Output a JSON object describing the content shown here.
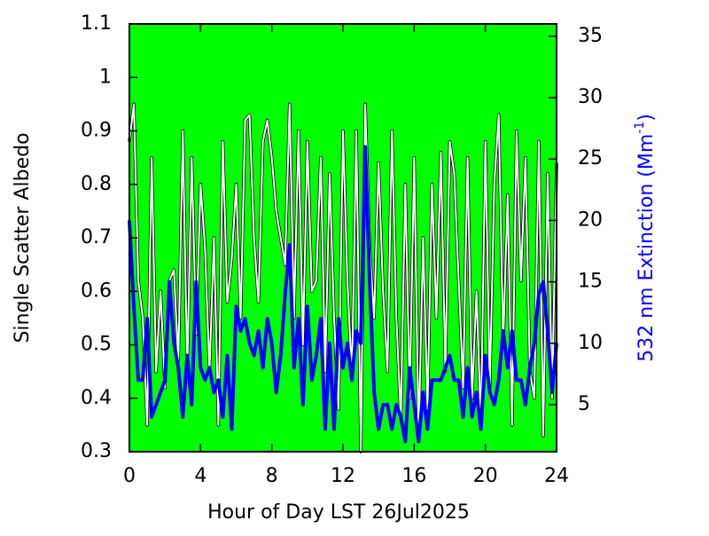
{
  "chart_data": {
    "type": "line",
    "xlabel": "Hour of Day LST 26Jul2025",
    "ylabel": "Single Scatter Albedo",
    "y2label": {
      "text": "532 nm Extinction (Mm",
      "superscript": "-1",
      "suffix": ")"
    },
    "background": "#00ff00",
    "xlim": [
      0,
      24
    ],
    "xticks": [
      0,
      4,
      8,
      12,
      16,
      20,
      24
    ],
    "ylim": [
      0.3,
      1.1
    ],
    "yticks": [
      0.3,
      0.4,
      0.5,
      0.6,
      0.7,
      0.8,
      0.9,
      1,
      1.1
    ],
    "y2lim": [
      1.17,
      36
    ],
    "y2ticks": [
      5,
      10,
      15,
      20,
      25,
      30,
      35
    ],
    "x": [
      0,
      0.25,
      0.5,
      0.75,
      1,
      1.25,
      1.5,
      1.75,
      2,
      2.25,
      2.5,
      2.75,
      3,
      3.25,
      3.5,
      3.75,
      4,
      4.25,
      4.5,
      4.75,
      5,
      5.25,
      5.5,
      5.75,
      6,
      6.25,
      6.5,
      6.75,
      7,
      7.25,
      7.5,
      7.75,
      8,
      8.25,
      8.5,
      8.75,
      9,
      9.25,
      9.5,
      9.75,
      10,
      10.25,
      10.5,
      10.75,
      11,
      11.25,
      11.5,
      11.75,
      12,
      12.25,
      12.5,
      12.75,
      13,
      13.25,
      13.5,
      13.75,
      14,
      14.25,
      14.5,
      14.75,
      15,
      15.25,
      15.5,
      15.75,
      16,
      16.25,
      16.5,
      16.75,
      17,
      17.25,
      17.5,
      17.75,
      18,
      18.25,
      18.5,
      18.75,
      19,
      19.25,
      19.5,
      19.75,
      20,
      20.25,
      20.5,
      20.75,
      21,
      21.25,
      21.5,
      21.75,
      22,
      22.25,
      22.5,
      22.75,
      23,
      23.25,
      23.5,
      23.75,
      24
    ],
    "series": [
      {
        "name": "Single Scatter Albedo",
        "color": "#ffffff",
        "axis": "y",
        "values": [
          0.88,
          0.95,
          0.62,
          0.55,
          0.35,
          0.85,
          0.45,
          0.6,
          0.42,
          0.62,
          0.64,
          0.47,
          0.9,
          0.45,
          0.85,
          0.52,
          0.8,
          0.68,
          0.45,
          0.7,
          0.35,
          0.88,
          0.58,
          0.66,
          0.8,
          0.55,
          0.92,
          0.93,
          0.7,
          0.58,
          0.88,
          0.92,
          0.85,
          0.75,
          0.7,
          0.65,
          0.95,
          0.55,
          0.9,
          0.5,
          0.88,
          0.6,
          0.62,
          0.85,
          0.45,
          0.82,
          0.55,
          0.38,
          0.9,
          0.62,
          0.44,
          0.9,
          0.3,
          0.95,
          0.68,
          0.55,
          0.84,
          0.6,
          0.45,
          0.9,
          0.55,
          0.36,
          0.8,
          0.4,
          0.85,
          0.32,
          0.7,
          0.38,
          0.8,
          0.55,
          0.86,
          0.45,
          0.88,
          0.82,
          0.62,
          0.42,
          0.85,
          0.4,
          0.6,
          0.35,
          0.88,
          0.42,
          0.8,
          0.93,
          0.5,
          0.78,
          0.35,
          0.9,
          0.62,
          0.85,
          0.45,
          0.4,
          0.88,
          0.33,
          0.82,
          0.4,
          0.84
        ]
      },
      {
        "name": "532 nm Extinction",
        "color": "#0000ff",
        "axis": "y2",
        "values": [
          20,
          13,
          7,
          7,
          12,
          4,
          5,
          6,
          7,
          15,
          10,
          8,
          4,
          9,
          5,
          15,
          8,
          7,
          8,
          6,
          7,
          4,
          9,
          3,
          13,
          11,
          12,
          10,
          9,
          11,
          8,
          12,
          10,
          6,
          9,
          14,
          18,
          8,
          12,
          5,
          13,
          7,
          9,
          12,
          3,
          10,
          3,
          12,
          8,
          10,
          7,
          11,
          10,
          26,
          15,
          6,
          3,
          5,
          5,
          3,
          5,
          4,
          2,
          8,
          5,
          2,
          6,
          3,
          7,
          7,
          7,
          8,
          9,
          7,
          7,
          4,
          8,
          4,
          6,
          3,
          9,
          6,
          5,
          7,
          11,
          8,
          11,
          7,
          7,
          5,
          8,
          10,
          14,
          15,
          11,
          6,
          10
        ]
      }
    ]
  }
}
